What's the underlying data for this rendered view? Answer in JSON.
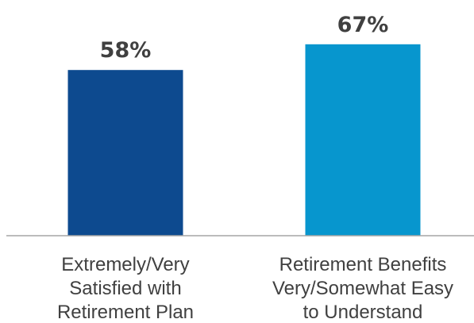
{
  "chart_data": {
    "type": "bar",
    "categories": [
      [
        "Extremely/Very",
        "Satisfied with",
        "Retirement Plan"
      ],
      [
        "Retirement Benefits",
        "Very/Somewhat Easy",
        "to Understand"
      ]
    ],
    "values": [
      58,
      67
    ],
    "value_labels": [
      "58%",
      "67%"
    ],
    "unit": "%",
    "colors": [
      "#0d4a8f",
      "#0796ce"
    ],
    "axis_color": "#a6a6a6",
    "ylim": [
      0,
      100
    ],
    "grid": false,
    "legend": "none"
  }
}
